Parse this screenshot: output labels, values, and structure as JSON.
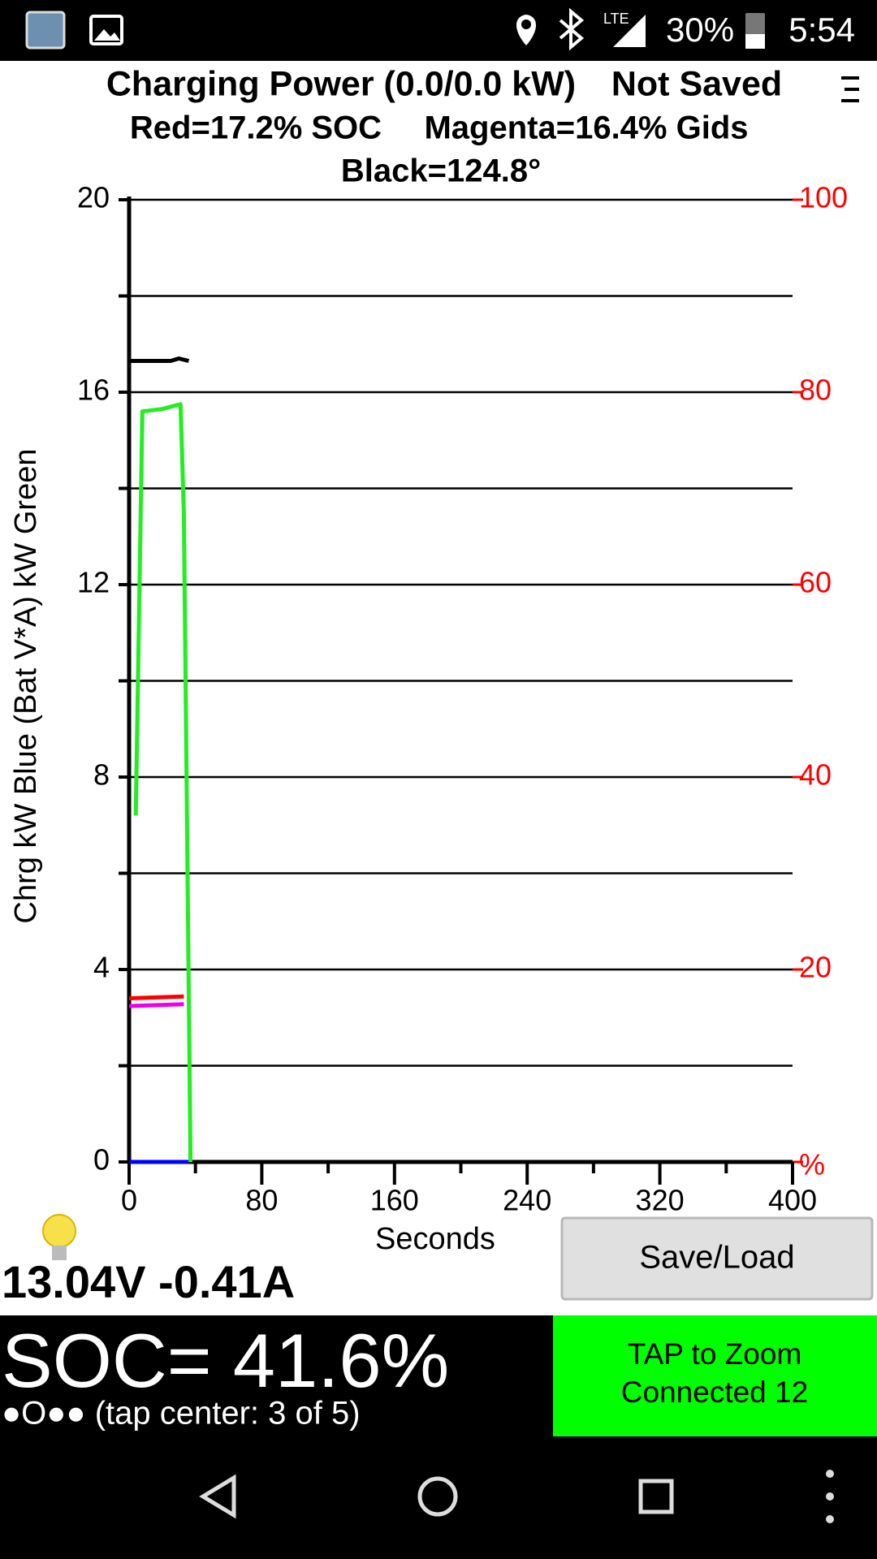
{
  "status_bar": {
    "network": "LTE",
    "battery": "30%",
    "time": "5:54"
  },
  "chart_data": {
    "type": "line",
    "title": "Charging Power (0.0/0.0 kW)",
    "save_status": "Not Saved",
    "subtitle": [
      "Red=17.2% SOC",
      "Magenta=16.4% Gids",
      "Black=124.8°"
    ],
    "xlabel": "Seconds",
    "ylabel": "Chrg kW Blue  (Bat V*A) kW Green",
    "xlim": [
      0,
      400
    ],
    "xticks": [
      0,
      80,
      160,
      240,
      320,
      400
    ],
    "xticks_minor": [
      40,
      120,
      200,
      280,
      360
    ],
    "ylim": [
      0,
      20
    ],
    "yticks": [
      0,
      4,
      8,
      12,
      16,
      20
    ],
    "yticks_minor": [
      2,
      6,
      10,
      14,
      18
    ],
    "y2lim": [
      0,
      100
    ],
    "y2ticks": [
      {
        "value": 0,
        "label": "%"
      },
      20,
      40,
      60,
      80,
      100
    ],
    "y2color": "#ff0000",
    "grid": true,
    "series": [
      {
        "color": "#000000",
        "x": [
          0,
          25,
          30,
          36
        ],
        "values": [
          16.65,
          16.65,
          16.7,
          16.65
        ]
      },
      {
        "color": "#ff0000",
        "axis": "y2",
        "x": [
          0,
          33
        ],
        "values": [
          17.0,
          17.2
        ]
      },
      {
        "color": "#ee00ee",
        "axis": "y2",
        "x": [
          0,
          33
        ],
        "values": [
          16.2,
          16.4
        ]
      },
      {
        "color": "#0000ff",
        "x": [
          0,
          36
        ],
        "values": [
          0,
          0
        ]
      },
      {
        "color": "#22ee22",
        "x": [
          4,
          8,
          20,
          31,
          33,
          37
        ],
        "values": [
          7.2,
          15.6,
          15.65,
          15.75,
          13.5,
          0
        ]
      }
    ]
  },
  "readout": {
    "voltage_current": "13.04V -0.41A",
    "soc": "SOC= 41.6%",
    "page_indicator": "●O●● (tap center: 3 of 5)"
  },
  "buttons": {
    "save_load": "Save/Load"
  },
  "zoom_panel": {
    "line1": "TAP to Zoom",
    "line2": "Connected 12"
  }
}
